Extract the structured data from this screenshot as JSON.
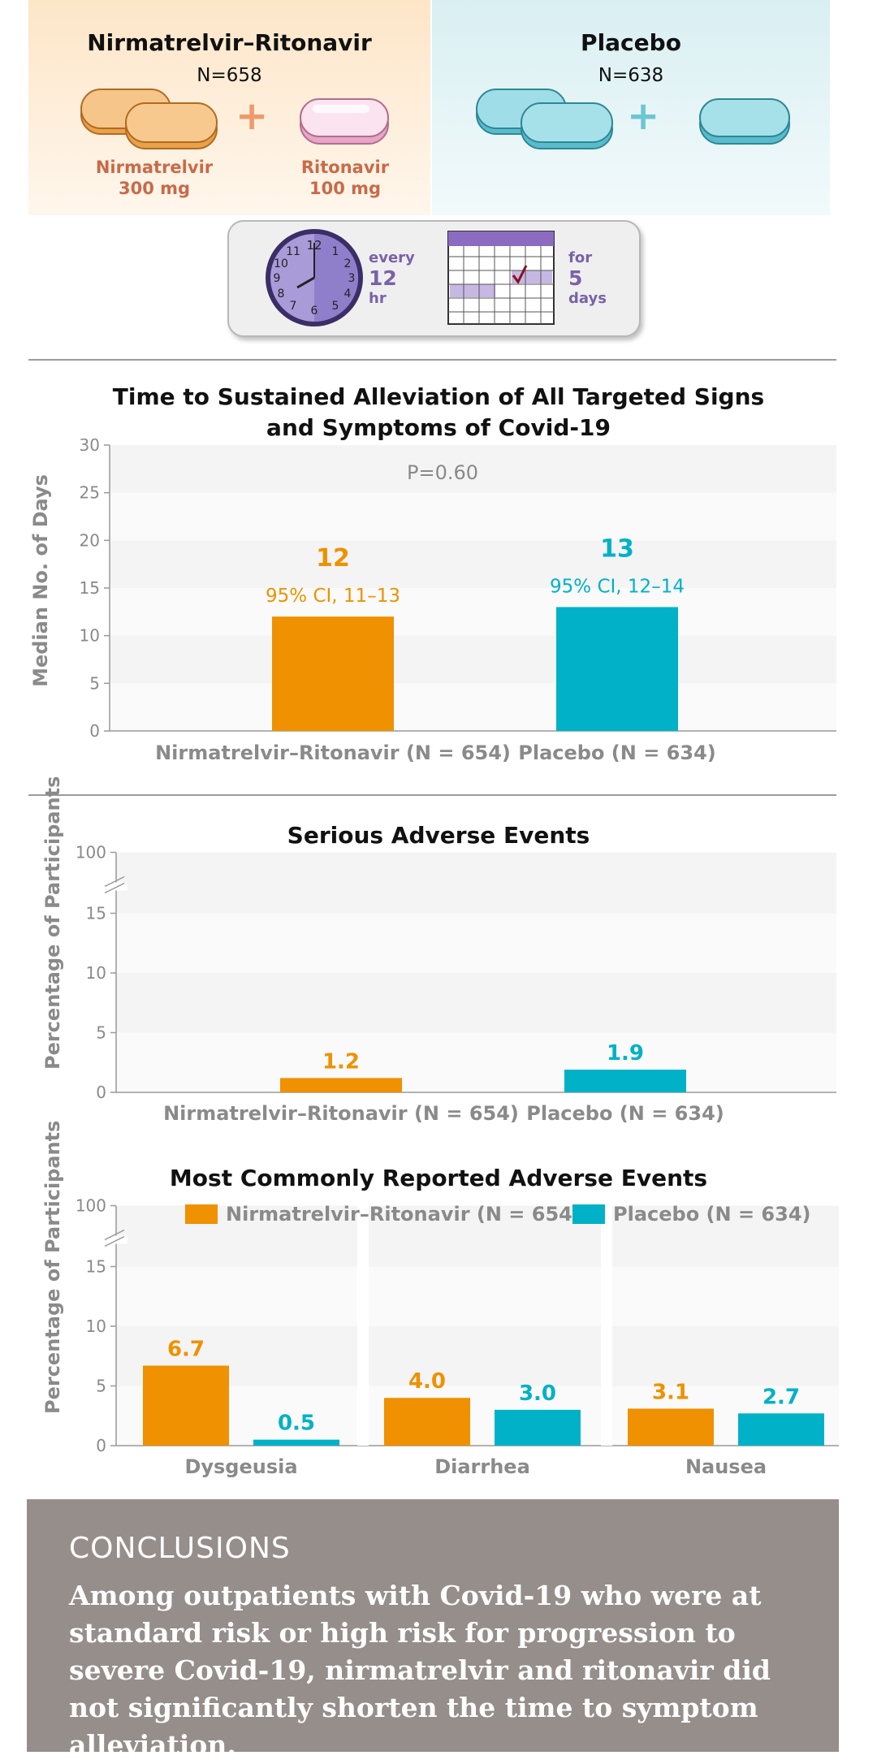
{
  "arms": [
    {
      "name": "Nirmatrelvir–Ritonavir",
      "n": "N=658",
      "drug1": {
        "name": "Nirmatrelvir",
        "dose": "300 mg"
      },
      "plus": "+",
      "drug2": {
        "name": "Ritonavir",
        "dose": "100 mg"
      }
    },
    {
      "name": "Placebo",
      "n": "N=638",
      "plus": "+"
    }
  ],
  "dosing": {
    "frequency": {
      "prefix": "every",
      "value": "12",
      "unit": "hr"
    },
    "duration": {
      "prefix": "for",
      "value": "5",
      "unit": "days"
    }
  },
  "colors": {
    "nirmatrelvir": "#ef9100",
    "placebo": "#00b1c8",
    "axis_text": "#8a8a8a",
    "conclusions_bg": "#958e8b"
  },
  "chart_data": [
    {
      "type": "bar",
      "title": "Time to Sustained Alleviation of All Targeted Signs and Symptoms of Covid-19",
      "title_lines": [
        "Time to Sustained Alleviation of All Targeted Signs",
        "and Symptoms of Covid-19"
      ],
      "ylabel": "Median No. of Days",
      "ylim": [
        0,
        30
      ],
      "yticks": [
        "0",
        "5",
        "10",
        "15",
        "20",
        "25",
        "30"
      ],
      "annotation": "P=0.60",
      "categories": [
        "Nirmatrelvir–Ritonavir (N = 654)",
        "Placebo (N = 634)"
      ],
      "values": [
        12,
        13
      ],
      "value_labels": [
        "12",
        "13"
      ],
      "ci_labels": [
        "95% CI, 11–13",
        "95% CI, 12–14"
      ],
      "grid": "alternating bands"
    },
    {
      "type": "bar",
      "title": "Serious Adverse Events",
      "ylabel": "Percentage of Participants",
      "ylim": [
        0,
        20
      ],
      "axis_break": "between 15 and 100",
      "yticks": [
        "0",
        "5",
        "10",
        "15",
        "100"
      ],
      "categories": [
        "Nirmatrelvir–Ritonavir (N = 654)",
        "Placebo (N = 634)"
      ],
      "values": [
        1.2,
        1.9
      ],
      "value_labels": [
        "1.2",
        "1.9"
      ],
      "grid": "alternating bands"
    },
    {
      "type": "bar",
      "title": "Most Commonly Reported Adverse Events",
      "ylabel": "Percentage of Participants",
      "ylim": [
        0,
        20
      ],
      "axis_break": "between 15 and 100",
      "yticks": [
        "0",
        "5",
        "10",
        "15",
        "100"
      ],
      "categories": [
        "Dysgeusia",
        "Diarrhea",
        "Nausea"
      ],
      "legend_position": "top",
      "series": [
        {
          "name": "Nirmatrelvir–Ritonavir (N = 654)",
          "values": [
            6.7,
            4.0,
            3.1
          ],
          "labels": [
            "6.7",
            "4.0",
            "3.1"
          ]
        },
        {
          "name": "Placebo (N = 634)",
          "values": [
            0.5,
            3.0,
            2.7
          ],
          "labels": [
            "0.5",
            "3.0",
            "2.7"
          ]
        }
      ]
    }
  ],
  "conclusions": {
    "heading": "CONCLUSIONS",
    "text": "Among outpatients with Covid-19 who were at standard risk or high risk for progression to severe Covid-19, nirmatrelvir and ritonavir did not significantly shorten the time to symptom alleviation."
  }
}
